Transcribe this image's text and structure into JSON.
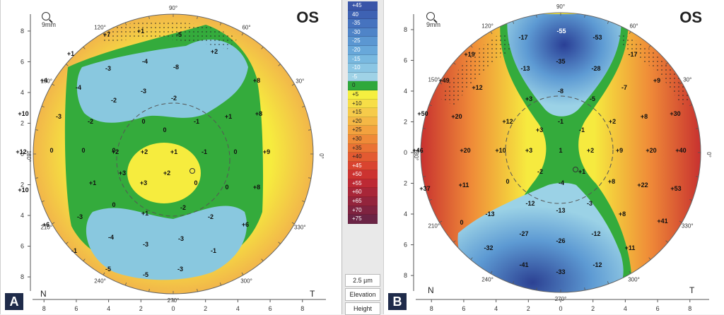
{
  "maps": [
    {
      "id": "A",
      "eye": "OS",
      "zoom": "9mm",
      "nasal": "N",
      "temporal": "T",
      "angles": [
        "90°",
        "120°",
        "60°",
        "150°",
        "30°",
        "180°",
        "0°",
        "210°",
        "330°",
        "240°",
        "300°",
        "270°"
      ],
      "y_ticks": [
        "8",
        "6",
        "4",
        "2",
        "0",
        "2",
        "4",
        "6",
        "8"
      ],
      "x_ticks": [
        "8",
        "6",
        "4",
        "2",
        "0",
        "2",
        "4",
        "6",
        "8"
      ],
      "values": [
        {
          "t": "+7",
          "mx": 150,
          "my": 52
        },
        {
          "t": "+1",
          "mx": 198,
          "my": 47
        },
        {
          "t": "-5",
          "mx": 252,
          "my": 52
        },
        {
          "t": "+1",
          "mx": 99,
          "my": 79
        },
        {
          "t": "+2",
          "mx": 302,
          "my": 76
        },
        {
          "t": "-3",
          "mx": 152,
          "my": 100
        },
        {
          "t": "-4",
          "mx": 204,
          "my": 90
        },
        {
          "t": "-8",
          "mx": 248,
          "my": 98
        },
        {
          "t": "+4",
          "mx": 61,
          "my": 117
        },
        {
          "t": "-4",
          "mx": 110,
          "my": 127
        },
        {
          "t": "-3",
          "mx": 202,
          "my": 132
        },
        {
          "t": "+8",
          "mx": 362,
          "my": 117
        },
        {
          "t": "-2",
          "mx": 160,
          "my": 145
        },
        {
          "t": "-2",
          "mx": 245,
          "my": 142
        },
        {
          "t": "-3",
          "mx": 82,
          "my": 168
        },
        {
          "t": "-2",
          "mx": 127,
          "my": 175
        },
        {
          "t": "0",
          "mx": 202,
          "my": 175
        },
        {
          "t": "0",
          "mx": 232,
          "my": 187
        },
        {
          "t": "-1",
          "mx": 277,
          "my": 175
        },
        {
          "t": "+1",
          "mx": 322,
          "my": 168
        },
        {
          "t": "+10",
          "mx": 32,
          "my": 164
        },
        {
          "t": "+8",
          "mx": 365,
          "my": 164
        },
        {
          "t": "+12",
          "mx": 29,
          "my": 218
        },
        {
          "t": "0",
          "mx": 72,
          "my": 216
        },
        {
          "t": "0",
          "mx": 117,
          "my": 216
        },
        {
          "t": "0",
          "mx": 160,
          "my": 216
        },
        {
          "t": "+2",
          "mx": 162,
          "my": 218
        },
        {
          "t": "+2",
          "mx": 203,
          "my": 218
        },
        {
          "t": "+1",
          "mx": 245,
          "my": 218
        },
        {
          "t": "-1",
          "mx": 288,
          "my": 218
        },
        {
          "t": "0",
          "mx": 332,
          "my": 218
        },
        {
          "t": "+9",
          "mx": 376,
          "my": 218
        },
        {
          "t": "+3",
          "mx": 172,
          "my": 248
        },
        {
          "t": "+3",
          "mx": 202,
          "my": 262
        },
        {
          "t": "+2",
          "mx": 235,
          "my": 248
        },
        {
          "t": "+1",
          "mx": 130,
          "my": 262
        },
        {
          "t": "0",
          "mx": 276,
          "my": 262
        },
        {
          "t": "0",
          "mx": 320,
          "my": 268
        },
        {
          "t": "+10",
          "mx": 32,
          "my": 272
        },
        {
          "t": "+8",
          "mx": 362,
          "my": 268
        },
        {
          "t": "0",
          "mx": 160,
          "my": 293
        },
        {
          "t": "+1",
          "mx": 204,
          "my": 305
        },
        {
          "t": "-2",
          "mx": 258,
          "my": 297
        },
        {
          "t": "-3",
          "mx": 112,
          "my": 310
        },
        {
          "t": "-2",
          "mx": 297,
          "my": 310
        },
        {
          "t": "+6",
          "mx": 64,
          "my": 321
        },
        {
          "t": "+6",
          "mx": 346,
          "my": 321
        },
        {
          "t": "-4",
          "mx": 156,
          "my": 339
        },
        {
          "t": "-3",
          "mx": 205,
          "my": 349
        },
        {
          "t": "-3",
          "mx": 255,
          "my": 341
        },
        {
          "t": "-1",
          "mx": 104,
          "my": 358
        },
        {
          "t": "-1",
          "mx": 301,
          "my": 358
        },
        {
          "t": "-5",
          "mx": 152,
          "my": 384
        },
        {
          "t": "-5",
          "mx": 205,
          "my": 392
        },
        {
          "t": "-3",
          "mx": 254,
          "my": 384
        }
      ]
    },
    {
      "id": "B",
      "eye": "OS",
      "zoom": "9mm",
      "nasal": "N",
      "temporal": "T",
      "angles": [
        "90°",
        "120°",
        "60°",
        "150°",
        "30°",
        "180°",
        "0°",
        "210°",
        "330°",
        "240°",
        "300°",
        "270°"
      ],
      "y_ticks": [
        "8",
        "6",
        "4",
        "2",
        "0",
        "2",
        "4",
        "6",
        "8"
      ],
      "x_ticks": [
        "8",
        "6",
        "4",
        "2",
        "0",
        "2",
        "4",
        "6",
        "8"
      ],
      "values": [
        {
          "t": "-55",
          "mx": 251,
          "my": 47
        },
        {
          "t": "-17",
          "mx": 197,
          "my": 56
        },
        {
          "t": "-53",
          "mx": 302,
          "my": 56
        },
        {
          "t": "+19",
          "mx": 121,
          "my": 80
        },
        {
          "t": "-17",
          "mx": 352,
          "my": 80
        },
        {
          "t": "-13",
          "mx": 200,
          "my": 100
        },
        {
          "t": "-35",
          "mx": 250,
          "my": 90
        },
        {
          "t": "-28",
          "mx": 300,
          "my": 100
        },
        {
          "t": "+49",
          "mx": 85,
          "my": 117
        },
        {
          "t": "+12",
          "mx": 132,
          "my": 127
        },
        {
          "t": "-8",
          "mx": 250,
          "my": 132
        },
        {
          "t": "-7",
          "mx": 340,
          "my": 127
        },
        {
          "t": "+9",
          "mx": 386,
          "my": 117
        },
        {
          "t": "+3",
          "mx": 205,
          "my": 143
        },
        {
          "t": "-5",
          "mx": 295,
          "my": 143
        },
        {
          "t": "+50",
          "mx": 55,
          "my": 164
        },
        {
          "t": "+20",
          "mx": 103,
          "my": 168
        },
        {
          "t": "+12",
          "mx": 175,
          "my": 175
        },
        {
          "t": "-1",
          "mx": 250,
          "my": 175
        },
        {
          "t": "+2",
          "mx": 323,
          "my": 175
        },
        {
          "t": "+8",
          "mx": 368,
          "my": 168
        },
        {
          "t": "+30",
          "mx": 412,
          "my": 164
        },
        {
          "t": "+3",
          "mx": 220,
          "my": 187
        },
        {
          "t": "-1",
          "mx": 280,
          "my": 187
        },
        {
          "t": "+46",
          "mx": 48,
          "my": 216
        },
        {
          "t": "+20",
          "mx": 115,
          "my": 216
        },
        {
          "t": "+10",
          "mx": 165,
          "my": 216
        },
        {
          "t": "+3",
          "mx": 205,
          "my": 216
        },
        {
          "t": "1",
          "mx": 250,
          "my": 216
        },
        {
          "t": "+2",
          "mx": 292,
          "my": 216
        },
        {
          "t": "+9",
          "mx": 333,
          "my": 216
        },
        {
          "t": "+20",
          "mx": 378,
          "my": 216
        },
        {
          "t": "+40",
          "mx": 420,
          "my": 216
        },
        {
          "t": "+1",
          "mx": 280,
          "my": 246
        },
        {
          "t": "-2",
          "mx": 221,
          "my": 246
        },
        {
          "t": "-4",
          "mx": 251,
          "my": 262
        },
        {
          "t": "+37",
          "mx": 58,
          "my": 270
        },
        {
          "t": "+11",
          "mx": 113,
          "my": 265
        },
        {
          "t": "0",
          "mx": 175,
          "my": 260
        },
        {
          "t": "+8",
          "mx": 322,
          "my": 260
        },
        {
          "t": "+22",
          "mx": 366,
          "my": 265
        },
        {
          "t": "+53",
          "mx": 413,
          "my": 270
        },
        {
          "t": "-12",
          "mx": 207,
          "my": 291
        },
        {
          "t": "-13",
          "mx": 250,
          "my": 301
        },
        {
          "t": "-3",
          "mx": 291,
          "my": 291
        },
        {
          "t": "0",
          "mx": 110,
          "my": 318
        },
        {
          "t": "-13",
          "mx": 150,
          "my": 306
        },
        {
          "t": "+8",
          "mx": 337,
          "my": 306
        },
        {
          "t": "+41",
          "mx": 394,
          "my": 316
        },
        {
          "t": "-27",
          "mx": 198,
          "my": 334
        },
        {
          "t": "-12",
          "mx": 300,
          "my": 334
        },
        {
          "t": "-26",
          "mx": 250,
          "my": 344
        },
        {
          "t": "-32",
          "mx": 148,
          "my": 354
        },
        {
          "t": "+11",
          "mx": 348,
          "my": 354
        },
        {
          "t": "-41",
          "mx": 198,
          "my": 378
        },
        {
          "t": "-33",
          "mx": 250,
          "my": 388
        },
        {
          "t": "-12",
          "mx": 302,
          "my": 378
        }
      ]
    }
  ],
  "legend": {
    "scale": [
      {
        "label": "+45",
        "color": "#3a55a8"
      },
      {
        "label": "40",
        "color": "#3e62b3"
      },
      {
        "label": "-35",
        "color": "#4673bf"
      },
      {
        "label": "-30",
        "color": "#4f84c8"
      },
      {
        "label": "-25",
        "color": "#5b97d2"
      },
      {
        "label": "-20",
        "color": "#68a8da"
      },
      {
        "label": "-15",
        "color": "#79b9e0"
      },
      {
        "label": "-10",
        "color": "#8bc6e4"
      },
      {
        "label": "-5",
        "color": "#9fd2e6"
      },
      {
        "label": "0",
        "color": "#2fa83b"
      },
      {
        "label": "+5",
        "color": "#f5ef40"
      },
      {
        "label": "+10",
        "color": "#f7de47"
      },
      {
        "label": "+15",
        "color": "#f6cb4a"
      },
      {
        "label": "+20",
        "color": "#f5b845"
      },
      {
        "label": "+25",
        "color": "#f3a23e"
      },
      {
        "label": "+30",
        "color": "#ef8a38"
      },
      {
        "label": "+35",
        "color": "#ea7234"
      },
      {
        "label": "+40",
        "color": "#e35a31"
      },
      {
        "label": "+45",
        "color": "#d9442f"
      },
      {
        "label": "+50",
        "color": "#cc3330"
      },
      {
        "label": "+55",
        "color": "#bd2934"
      },
      {
        "label": "+60",
        "color": "#a82638"
      },
      {
        "label": "+65",
        "color": "#93243c"
      },
      {
        "label": "+70",
        "color": "#7f2340"
      },
      {
        "label": "+75",
        "color": "#6b2445"
      }
    ],
    "step": "2.5 µm",
    "mode": "Elevation",
    "type": "Height"
  }
}
